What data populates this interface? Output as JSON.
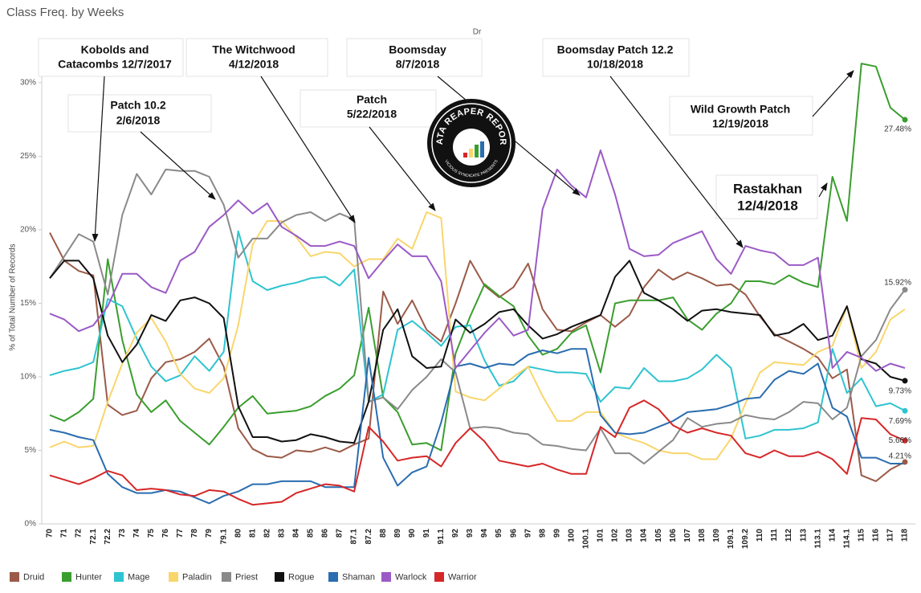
{
  "chart_data": {
    "type": "line",
    "title": "Class Freq. by Weeks",
    "header": "Dr",
    "y_axis_label": "% of Total Number of Records",
    "logo": [
      "DATA REAPER REPORT",
      "VICIOUS SYNDICATE PRESENTS"
    ],
    "categories": [
      "70",
      "71",
      "72",
      "72.1",
      "72.2",
      "73",
      "74",
      "75",
      "76",
      "77",
      "78",
      "79",
      "79.1",
      "80",
      "81",
      "82",
      "83",
      "84",
      "85",
      "86",
      "87",
      "87.1",
      "87.2",
      "88",
      "89",
      "90",
      "91",
      "91.1",
      "92",
      "93",
      "94",
      "95",
      "96",
      "97",
      "98",
      "99",
      "100",
      "100.1",
      "101",
      "102",
      "103",
      "104",
      "105",
      "106",
      "107",
      "108",
      "109",
      "109.1",
      "109.2",
      "110",
      "111",
      "112",
      "113",
      "113.1",
      "114",
      "114.1",
      "115",
      "116",
      "117",
      "118"
    ],
    "ylim": [
      0,
      33
    ],
    "yticks": [
      {
        "value": 0,
        "label": "0%"
      },
      {
        "value": 5,
        "label": "5%"
      },
      {
        "value": 10,
        "label": "10%"
      },
      {
        "value": 15,
        "label": "15%"
      },
      {
        "value": 20,
        "label": "20%"
      },
      {
        "value": 25,
        "label": "25%"
      },
      {
        "value": 30,
        "label": "30%"
      }
    ],
    "grid": false,
    "legend": "bottom",
    "series": [
      {
        "name": "Druid",
        "color": "#9b5a47",
        "values": [
          19.8,
          17.9,
          17.2,
          16.9,
          8.1,
          7.4,
          7.7,
          9.9,
          11.0,
          11.2,
          11.7,
          12.6,
          10.7,
          6.5,
          5.1,
          4.6,
          4.5,
          5.0,
          4.9,
          5.2,
          4.9,
          5.4,
          5.8,
          15.8,
          13.6,
          15.2,
          13.2,
          12.4,
          15.0,
          17.9,
          16.2,
          15.4,
          16.1,
          17.7,
          14.6,
          13.2,
          13.1,
          13.7,
          14.2,
          13.4,
          14.2,
          16.1,
          17.3,
          16.6,
          17.1,
          16.7,
          16.2,
          16.3,
          15.6,
          14.1,
          12.9,
          12.4,
          11.9,
          11.3,
          9.9,
          10.5,
          3.3,
          2.9,
          3.7,
          4.21
        ],
        "value_labels": [
          null,
          null,
          null,
          null,
          null,
          null,
          null,
          null,
          null,
          null,
          null,
          null,
          null,
          null,
          null,
          null,
          null,
          null,
          null,
          null,
          null,
          null,
          null,
          null,
          null,
          null,
          null,
          null,
          null,
          null,
          null,
          null,
          null,
          null,
          null,
          null,
          null,
          null,
          null,
          null,
          null,
          null,
          null,
          null,
          null,
          null,
          null,
          null,
          null,
          null,
          null,
          null,
          null,
          null,
          null,
          null,
          null,
          null,
          null,
          "4.21%"
        ]
      },
      {
        "name": "Hunter",
        "color": "#3a9e2e",
        "values": [
          7.4,
          7.0,
          7.6,
          8.5,
          18.0,
          12.5,
          8.8,
          7.6,
          8.4,
          7.0,
          6.2,
          5.4,
          6.6,
          7.9,
          8.7,
          7.5,
          7.6,
          7.7,
          8.0,
          8.7,
          9.2,
          10.1,
          14.7,
          8.6,
          7.6,
          5.4,
          5.5,
          5.0,
          11.6,
          14.1,
          16.3,
          15.5,
          14.8,
          12.8,
          11.5,
          11.9,
          13.0,
          13.5,
          10.3,
          15.0,
          15.2,
          15.2,
          15.2,
          15.4,
          13.9,
          13.2,
          14.3,
          15.0,
          16.5,
          16.5,
          16.3,
          16.9,
          16.4,
          16.1,
          23.6,
          20.6,
          31.3,
          31.1,
          28.3,
          27.48
        ],
        "value_labels": [
          null,
          null,
          null,
          null,
          null,
          null,
          null,
          null,
          null,
          null,
          null,
          null,
          null,
          null,
          null,
          null,
          null,
          null,
          null,
          null,
          null,
          null,
          null,
          null,
          null,
          null,
          null,
          null,
          null,
          null,
          null,
          null,
          null,
          null,
          null,
          null,
          null,
          null,
          null,
          null,
          null,
          null,
          null,
          null,
          null,
          null,
          null,
          null,
          null,
          null,
          null,
          null,
          null,
          null,
          null,
          null,
          null,
          null,
          null,
          "27.48%"
        ]
      },
      {
        "name": "Mage",
        "color": "#2ec4d0",
        "values": [
          10.1,
          10.4,
          10.6,
          11.0,
          15.3,
          14.8,
          12.6,
          10.7,
          9.7,
          10.1,
          11.4,
          10.4,
          11.7,
          19.9,
          16.5,
          15.9,
          16.2,
          16.4,
          16.7,
          16.8,
          16.2,
          17.3,
          8.3,
          8.8,
          13.2,
          13.8,
          13.0,
          12.1,
          13.4,
          13.5,
          11.1,
          9.4,
          9.7,
          10.7,
          10.5,
          10.3,
          10.3,
          10.2,
          8.3,
          9.3,
          9.2,
          10.6,
          9.7,
          9.7,
          9.9,
          10.5,
          11.5,
          10.6,
          5.8,
          6.0,
          6.4,
          6.4,
          6.5,
          6.9,
          11.9,
          8.9,
          9.9,
          8.0,
          8.2,
          7.69
        ],
        "value_labels": [
          null,
          null,
          null,
          null,
          null,
          null,
          null,
          null,
          null,
          null,
          null,
          null,
          null,
          null,
          null,
          null,
          null,
          null,
          null,
          null,
          null,
          null,
          null,
          null,
          null,
          null,
          null,
          null,
          null,
          null,
          null,
          null,
          null,
          null,
          null,
          null,
          null,
          null,
          null,
          null,
          null,
          null,
          null,
          null,
          null,
          null,
          null,
          null,
          null,
          null,
          null,
          null,
          null,
          null,
          null,
          null,
          null,
          null,
          null,
          "7.69%"
        ]
      },
      {
        "name": "Paladin",
        "color": "#f9d66c",
        "values": [
          5.2,
          5.6,
          5.2,
          5.3,
          8.3,
          10.9,
          13.0,
          14.0,
          12.4,
          10.2,
          9.2,
          8.9,
          9.9,
          13.5,
          19.0,
          20.6,
          20.6,
          19.5,
          18.2,
          18.5,
          18.4,
          17.5,
          18.0,
          18.0,
          19.4,
          18.7,
          21.2,
          20.8,
          9.0,
          8.6,
          8.4,
          9.2,
          10.0,
          10.7,
          8.7,
          7.0,
          7.0,
          7.6,
          7.6,
          6.2,
          5.8,
          5.5,
          5.0,
          4.8,
          4.8,
          4.4,
          4.4,
          5.8,
          8.2,
          10.3,
          11.0,
          10.9,
          10.8,
          11.7,
          12.1,
          14.8,
          10.6,
          11.7,
          13.9,
          14.6
        ]
      },
      {
        "name": "Priest",
        "color": "#8a8a8a",
        "values": [
          16.7,
          18.2,
          19.7,
          19.2,
          15.6,
          21.0,
          23.8,
          22.4,
          24.1,
          24.0,
          24.0,
          23.6,
          21.7,
          18.1,
          19.4,
          19.4,
          20.5,
          21.0,
          21.2,
          20.6,
          21.1,
          20.7,
          8.3,
          8.6,
          7.8,
          9.1,
          10.0,
          11.2,
          10.3,
          6.5,
          6.6,
          6.5,
          6.2,
          6.1,
          5.4,
          5.3,
          5.1,
          5.0,
          6.5,
          4.8,
          4.8,
          4.1,
          4.9,
          5.7,
          7.2,
          6.6,
          6.8,
          6.9,
          7.4,
          7.2,
          7.1,
          7.6,
          8.3,
          8.2,
          7.1,
          7.9,
          11.4,
          12.5,
          14.6,
          15.92
        ],
        "value_labels": [
          null,
          null,
          null,
          null,
          null,
          null,
          null,
          null,
          null,
          null,
          null,
          null,
          null,
          null,
          null,
          null,
          null,
          null,
          null,
          null,
          null,
          null,
          null,
          null,
          null,
          null,
          null,
          null,
          null,
          null,
          null,
          null,
          null,
          null,
          null,
          null,
          null,
          null,
          null,
          null,
          null,
          null,
          null,
          null,
          null,
          null,
          null,
          null,
          null,
          null,
          null,
          null,
          null,
          null,
          null,
          null,
          null,
          null,
          null,
          "15.92%"
        ]
      },
      {
        "name": "Rogue",
        "color": "#111111",
        "values": [
          16.7,
          17.9,
          17.9,
          16.7,
          12.8,
          11.0,
          12.2,
          14.2,
          13.8,
          15.2,
          15.4,
          15.0,
          14.0,
          8.0,
          5.9,
          5.9,
          5.6,
          5.7,
          6.1,
          5.9,
          5.6,
          5.5,
          8.3,
          13.2,
          14.6,
          11.4,
          10.6,
          10.7,
          13.9,
          13.0,
          13.6,
          14.4,
          14.6,
          13.5,
          12.6,
          12.9,
          13.4,
          13.8,
          14.2,
          16.8,
          17.9,
          15.7,
          15.2,
          14.6,
          13.8,
          14.5,
          14.6,
          14.4,
          14.3,
          14.2,
          12.8,
          13.0,
          13.6,
          12.5,
          12.8,
          14.8,
          11.2,
          10.9,
          10.0,
          9.73
        ],
        "value_labels": [
          null,
          null,
          null,
          null,
          null,
          null,
          null,
          null,
          null,
          null,
          null,
          null,
          null,
          null,
          null,
          null,
          null,
          null,
          null,
          null,
          null,
          null,
          null,
          null,
          null,
          null,
          null,
          null,
          null,
          null,
          null,
          null,
          null,
          null,
          null,
          null,
          null,
          null,
          null,
          null,
          null,
          null,
          null,
          null,
          null,
          null,
          null,
          null,
          null,
          null,
          null,
          null,
          null,
          null,
          null,
          null,
          null,
          null,
          null,
          "9.73%"
        ]
      },
      {
        "name": "Shaman",
        "color": "#2a6db0",
        "values": [
          6.4,
          6.2,
          5.9,
          5.7,
          3.4,
          2.5,
          2.1,
          2.1,
          2.3,
          2.2,
          1.8,
          1.4,
          1.9,
          2.2,
          2.7,
          2.7,
          2.9,
          2.9,
          2.9,
          2.5,
          2.5,
          2.5,
          11.3,
          4.5,
          2.6,
          3.5,
          3.9,
          6.9,
          10.7,
          10.9,
          10.6,
          10.9,
          10.8,
          11.5,
          11.8,
          11.6,
          11.9,
          11.9,
          7.4,
          6.2,
          6.1,
          6.2,
          6.6,
          7.0,
          7.6,
          7.7,
          7.8,
          8.1,
          8.5,
          8.6,
          9.8,
          10.4,
          10.2,
          10.9,
          7.9,
          7.3,
          4.5,
          4.5,
          4.1,
          4.1
        ]
      },
      {
        "name": "Warlock",
        "color": "#9b5ac6",
        "values": [
          14.3,
          13.9,
          13.1,
          13.5,
          14.8,
          17.0,
          17.0,
          16.1,
          15.7,
          17.9,
          18.5,
          20.2,
          21.0,
          22.0,
          21.1,
          21.8,
          20.2,
          19.6,
          18.9,
          18.9,
          19.2,
          18.9,
          16.7,
          17.9,
          19.0,
          18.2,
          18.2,
          16.5,
          10.6,
          11.8,
          13.0,
          14.0,
          12.8,
          13.2,
          21.4,
          24.1,
          23.0,
          22.2,
          25.4,
          22.4,
          18.7,
          18.2,
          18.3,
          19.1,
          19.5,
          19.9,
          18.0,
          17.0,
          18.9,
          18.6,
          18.4,
          17.6,
          17.6,
          18.1,
          10.6,
          11.7,
          11.3,
          10.4,
          10.9,
          10.6
        ]
      },
      {
        "name": "Warrior",
        "color": "#d62728",
        "values": [
          3.3,
          3.0,
          2.7,
          3.1,
          3.6,
          3.3,
          2.3,
          2.4,
          2.3,
          2.0,
          1.9,
          2.3,
          2.2,
          1.7,
          1.3,
          1.4,
          1.5,
          2.1,
          2.4,
          2.7,
          2.6,
          2.2,
          6.6,
          5.6,
          4.3,
          4.5,
          4.6,
          3.9,
          5.5,
          6.5,
          5.6,
          4.3,
          4.1,
          3.9,
          4.1,
          3.7,
          3.4,
          3.4,
          6.6,
          5.9,
          7.9,
          8.4,
          7.8,
          6.7,
          6.2,
          6.5,
          6.2,
          6.0,
          4.8,
          4.5,
          5.0,
          4.6,
          4.6,
          4.9,
          4.4,
          3.4,
          7.2,
          7.1,
          6.1,
          5.66
        ],
        "value_labels": [
          null,
          null,
          null,
          null,
          null,
          null,
          null,
          null,
          null,
          null,
          null,
          null,
          null,
          null,
          null,
          null,
          null,
          null,
          null,
          null,
          null,
          null,
          null,
          null,
          null,
          null,
          null,
          null,
          null,
          null,
          null,
          null,
          null,
          null,
          null,
          null,
          null,
          null,
          null,
          null,
          null,
          null,
          null,
          null,
          null,
          null,
          null,
          null,
          null,
          null,
          null,
          null,
          null,
          null,
          null,
          null,
          null,
          null,
          null,
          "5.66%"
        ]
      }
    ],
    "annotations": [
      {
        "lines": [
          "Kobolds and",
          "Catacombs 12/7/2017"
        ]
      },
      {
        "lines": [
          "Patch 10.2",
          "2/6/2018"
        ]
      },
      {
        "lines": [
          "The Witchwood",
          "4/12/2018"
        ]
      },
      {
        "lines": [
          "Patch",
          "5/22/2018"
        ]
      },
      {
        "lines": [
          "Boomsday",
          "8/7/2018"
        ]
      },
      {
        "lines": [
          "Boomsday Patch 12.2",
          "10/18/2018"
        ]
      },
      {
        "lines": [
          "Wild Growth Patch",
          "12/19/2018"
        ]
      },
      {
        "lines": [
          "Rastakhan",
          "12/4/2018"
        ]
      }
    ]
  }
}
